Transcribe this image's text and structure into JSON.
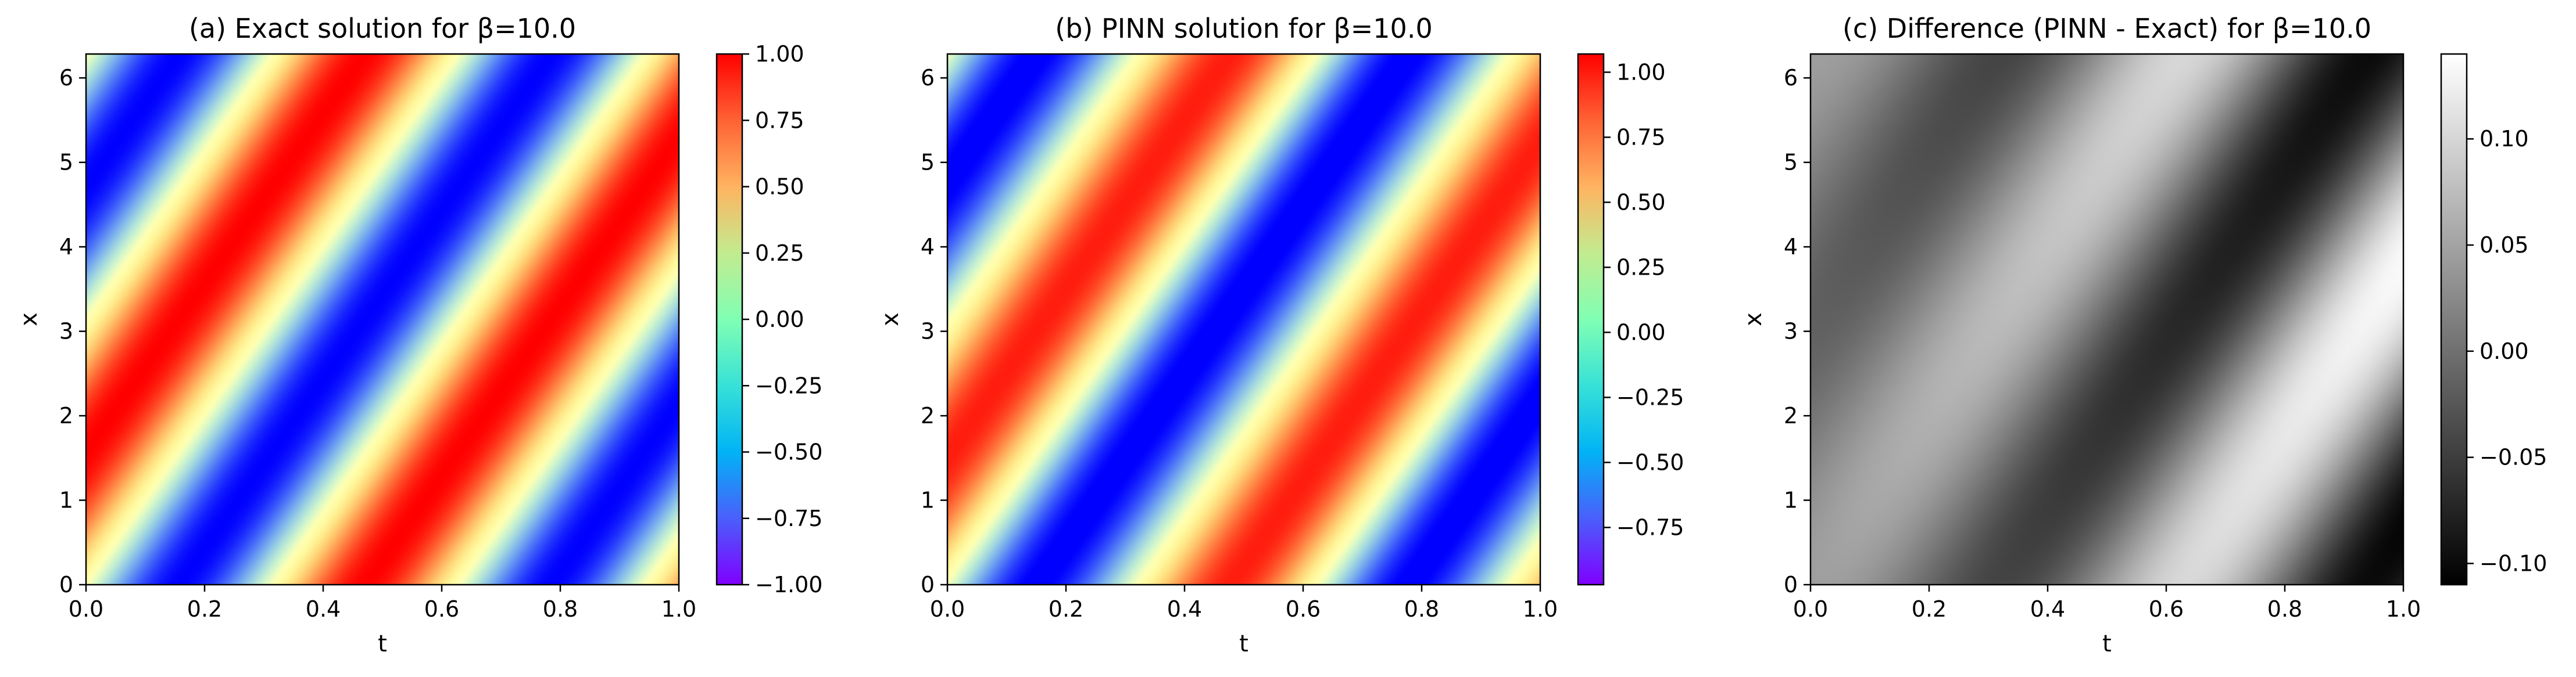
{
  "figure": {
    "panels": [
      {
        "title": "(a) Exact solution for β=10.0",
        "xlabel": "t",
        "ylabel": "x",
        "colormap": "rainbow",
        "colorbar_ticks": [
          "1.00",
          "0.75",
          "0.50",
          "0.25",
          "0.00",
          "−0.25",
          "−0.50",
          "−0.75",
          "−1.00"
        ]
      },
      {
        "title": "(b) PINN solution for β=10.0",
        "xlabel": "t",
        "ylabel": "x",
        "colormap": "rainbow",
        "colorbar_ticks": [
          "1.00",
          "0.75",
          "0.50",
          "0.25",
          "0.00",
          "−0.25",
          "−0.50",
          "−0.75"
        ]
      },
      {
        "title": "(c) Difference (PINN - Exact) for β=10.0",
        "xlabel": "t",
        "ylabel": "x",
        "colormap": "gray",
        "colorbar_ticks": [
          "0.10",
          "0.05",
          "0.00",
          "−0.05",
          "−0.10"
        ]
      }
    ],
    "xticks": [
      "0.0",
      "0.2",
      "0.4",
      "0.6",
      "0.8",
      "1.0"
    ],
    "yticks": [
      "0",
      "1",
      "2",
      "3",
      "4",
      "5",
      "6"
    ]
  },
  "chart_data": [
    {
      "type": "heatmap",
      "title": "(a) Exact solution for β=10.0",
      "xlabel": "t",
      "ylabel": "x",
      "xlim": [
        0,
        1
      ],
      "ylim": [
        0,
        6.283
      ],
      "field": "sin(x - 10 t)",
      "clim": [
        -1.0,
        1.0
      ],
      "colormap": "rainbow",
      "colorbar_ticks": [
        1.0,
        0.75,
        0.5,
        0.25,
        0.0,
        -0.25,
        -0.5,
        -0.75,
        -1.0
      ]
    },
    {
      "type": "heatmap",
      "title": "(b) PINN solution for β=10.0",
      "xlabel": "t",
      "ylabel": "x",
      "xlim": [
        0,
        1
      ],
      "ylim": [
        0,
        6.283
      ],
      "field": "approximately sin(x - 10 t)",
      "clim": [
        -0.97,
        1.07
      ],
      "colormap": "rainbow",
      "colorbar_ticks": [
        1.0,
        0.75,
        0.5,
        0.25,
        0.0,
        -0.25,
        -0.5,
        -0.75
      ]
    },
    {
      "type": "heatmap",
      "title": "(c) Difference (PINN - Exact) for β=10.0",
      "xlabel": "t",
      "ylabel": "x",
      "xlim": [
        0,
        1
      ],
      "ylim": [
        0,
        6.283
      ],
      "field": "diagonal bands, amplitude growing with t",
      "clim": [
        -0.11,
        0.14
      ],
      "colormap": "gray",
      "colorbar_ticks": [
        0.1,
        0.05,
        0.0,
        -0.05,
        -0.1
      ]
    }
  ]
}
